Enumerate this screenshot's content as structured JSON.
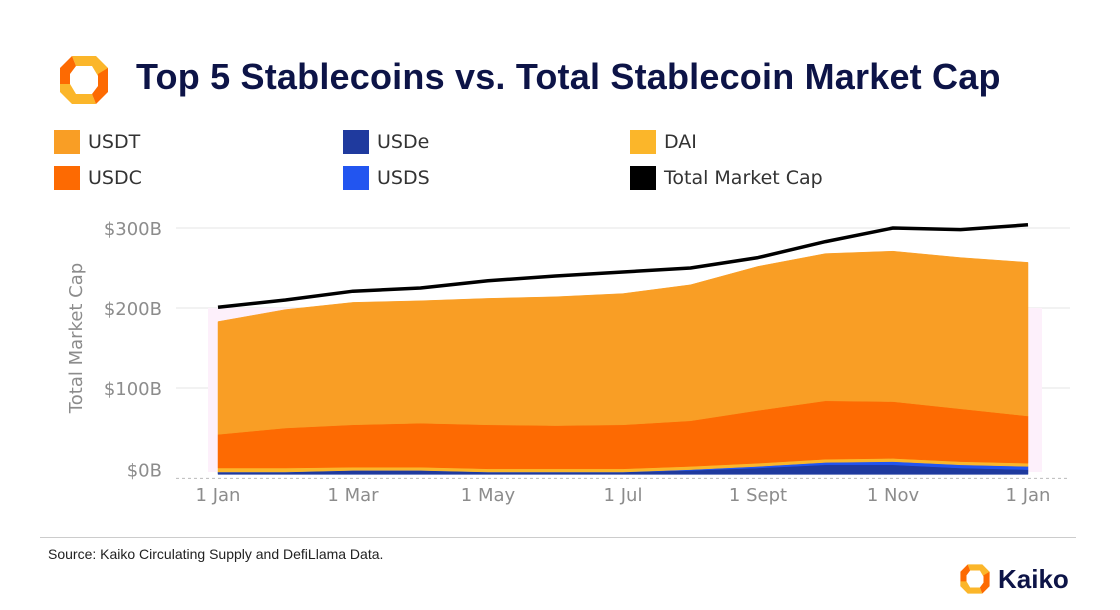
{
  "header": {
    "title": "Top 5 Stablecoins vs. Total Stablecoin Market Cap"
  },
  "legend": [
    {
      "label": "USDT",
      "color": "#f99e25"
    },
    {
      "label": "USDC",
      "color": "#fd6a02"
    },
    {
      "label": "USDe",
      "color": "#1f3a9e"
    },
    {
      "label": "USDS",
      "color": "#2255f0"
    },
    {
      "label": "DAI",
      "color": "#fbb62a"
    },
    {
      "label": "Total Market Cap",
      "color": "#000000"
    }
  ],
  "chart_data": {
    "type": "area",
    "title": "Top 5 Stablecoins vs. Total Stablecoin Market Cap",
    "xlabel": "",
    "ylabel": "Total Market Cap",
    "x_ticks": [
      "1 Jan",
      "1 Mar",
      "1 May",
      "1 Jul",
      "1 Sept",
      "1 Nov",
      "1 Jan"
    ],
    "y_ticks": [
      "$0B",
      "$100B",
      "$200B",
      "$300B"
    ],
    "y_tick_values": [
      0,
      100,
      200,
      300
    ],
    "ylim": [
      -15,
      320
    ],
    "x_months": [
      0,
      1,
      2,
      3,
      4,
      5,
      6,
      7,
      8,
      9,
      10,
      11,
      12
    ],
    "series": [
      {
        "name": "USDe",
        "color": "#1f3a9e",
        "values": [
          3,
          3,
          5,
          5,
          3,
          3,
          3,
          5,
          8,
          12,
          12,
          8,
          6
        ]
      },
      {
        "name": "USDS",
        "color": "#2255f0",
        "values": [
          0,
          0,
          0,
          0,
          0,
          0,
          0,
          1,
          2,
          3,
          4,
          4,
          4
        ]
      },
      {
        "name": "DAI",
        "color": "#fbb62a",
        "values": [
          5,
          5,
          4,
          4,
          4,
          4,
          4,
          4,
          4,
          4,
          4,
          4,
          4
        ]
      },
      {
        "name": "USDC",
        "color": "#fd6a02",
        "values": [
          42,
          50,
          53,
          55,
          55,
          54,
          55,
          57,
          66,
          73,
          71,
          66,
          59
        ]
      },
      {
        "name": "USDT",
        "color": "#f99e25",
        "values": [
          141,
          148,
          153,
          153,
          158,
          161,
          164,
          170,
          180,
          184,
          188,
          189,
          192
        ]
      }
    ],
    "total_market_cap": {
      "name": "Total Market Cap",
      "color": "#000000",
      "values": [
        201,
        210,
        221,
        225,
        234,
        240,
        245,
        250,
        263,
        283,
        300,
        298,
        304
      ]
    },
    "grid": true,
    "legend_position": "top"
  },
  "footer": {
    "source": "Source: Kaiko Circulating Supply and DefiLlama Data.",
    "brand": "Kaiko"
  }
}
